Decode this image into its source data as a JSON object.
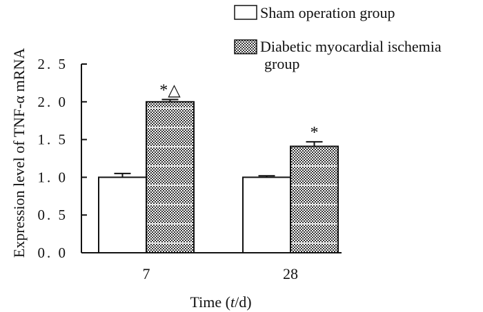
{
  "chart_data": {
    "type": "bar",
    "title": "",
    "xlabel": "Time (t/d)",
    "xlabel_parts": {
      "prefix": "Time (",
      "variable": "t",
      "suffix": "/d)"
    },
    "ylabel": "Expression level of TNF-α mRNA",
    "ylim": [
      0,
      2.5
    ],
    "yticks": [
      "0. 0",
      "0. 5",
      "1. 0",
      "1. 5",
      "2. 0",
      "2. 5"
    ],
    "ytick_values": [
      0,
      0.5,
      1.0,
      1.5,
      2.0,
      2.5
    ],
    "categories": [
      "7",
      "28"
    ],
    "series": [
      {
        "name": "Sham operation group",
        "values": [
          1.0,
          1.0
        ],
        "errors": [
          0.05,
          0.02
        ],
        "annotations": [
          "",
          ""
        ],
        "fill": "#ffffff"
      },
      {
        "name": "Diabetic myocardial ischemia group",
        "name_lines": [
          "Diabetic myocardial ischemia",
          "group"
        ],
        "values": [
          2.0,
          1.41
        ],
        "errors": [
          0.03,
          0.06
        ],
        "annotations": [
          "*△",
          "*"
        ],
        "fill": "checkered"
      }
    ],
    "legend_position": "top-right",
    "grid": false
  }
}
